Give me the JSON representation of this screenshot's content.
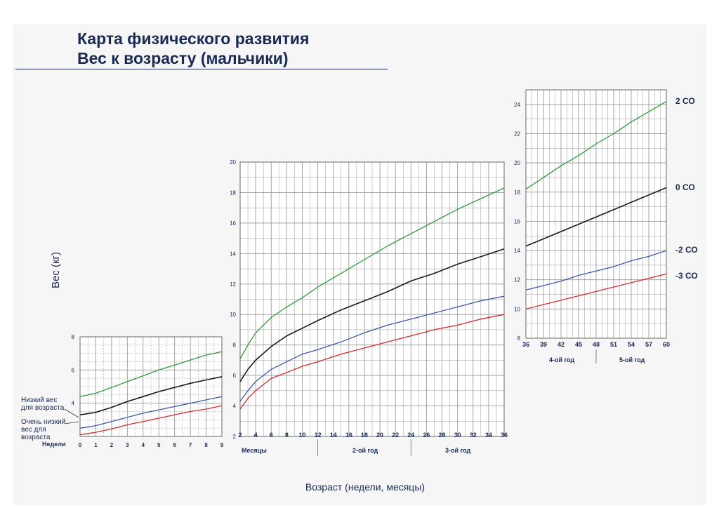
{
  "title_lines": [
    "Карта физического развития",
    "Вес к возрасту (мальчики)"
  ],
  "y_axis_label": "Вес (кг)",
  "x_axis_label": "Возраст (недели, месяцы)",
  "sd_labels": [
    "2 СО",
    "0 СО",
    "-2 СО",
    "-3 СО"
  ],
  "notes": {
    "low_weight": [
      "Низкий вес",
      "для возраста"
    ],
    "very_low_weight": [
      "Очень низкий",
      "вес для",
      "возраста"
    ]
  },
  "captions": {
    "weeks": "Недели",
    "months": "Месяцы",
    "year2": "2-ой год",
    "year3": "3-ой год",
    "year4": "4-ой год",
    "year5": "5-ой год"
  },
  "colors": {
    "sd2": "#2e9a3a",
    "sd0": "#1a1a1a",
    "sd_minus2": "#3d58a8",
    "sd_minus3": "#d42a2a",
    "text": "#1a2a55",
    "grid": "#9a9a9a"
  },
  "chart_data": [
    {
      "type": "line",
      "name": "weeks",
      "x_unit": "Недели",
      "xlim": [
        0,
        9
      ],
      "ylim": [
        2,
        8
      ],
      "x_ticks": [
        0,
        1,
        2,
        3,
        4,
        5,
        6,
        7,
        8,
        9
      ],
      "y_ticks": [
        4,
        6,
        8
      ],
      "series": [
        {
          "name": "2 СО",
          "x": [
            0,
            1,
            2,
            3,
            4,
            5,
            6,
            7,
            8,
            9
          ],
          "values": [
            4.4,
            4.6,
            4.95,
            5.3,
            5.65,
            6.0,
            6.3,
            6.6,
            6.9,
            7.1
          ]
        },
        {
          "name": "0 СО",
          "x": [
            0,
            1,
            2,
            3,
            4,
            5,
            6,
            7,
            8,
            9
          ],
          "values": [
            3.3,
            3.45,
            3.75,
            4.1,
            4.4,
            4.7,
            4.95,
            5.2,
            5.4,
            5.6
          ]
        },
        {
          "name": "-2 СО",
          "x": [
            0,
            1,
            2,
            3,
            4,
            5,
            6,
            7,
            8,
            9
          ],
          "values": [
            2.5,
            2.65,
            2.9,
            3.15,
            3.4,
            3.6,
            3.8,
            4.0,
            4.2,
            4.4
          ]
        },
        {
          "name": "-3 СО",
          "x": [
            0,
            1,
            2,
            3,
            4,
            5,
            6,
            7,
            8,
            9
          ],
          "values": [
            2.1,
            2.25,
            2.45,
            2.7,
            2.9,
            3.1,
            3.3,
            3.5,
            3.65,
            3.85
          ]
        }
      ]
    },
    {
      "type": "line",
      "name": "months",
      "x_unit": "Месяцы",
      "xlim": [
        2,
        36
      ],
      "ylim": [
        2,
        20
      ],
      "x_ticks": [
        2,
        4,
        6,
        8,
        10,
        12,
        14,
        16,
        18,
        20,
        22,
        24,
        26,
        28,
        30,
        32,
        34,
        36
      ],
      "y_ticks": [
        2,
        4,
        6,
        8,
        10,
        12,
        14,
        16,
        18,
        20
      ],
      "series": [
        {
          "name": "2 СО",
          "x": [
            2,
            3,
            4,
            6,
            8,
            10,
            12,
            15,
            18,
            21,
            24,
            27,
            30,
            33,
            36
          ],
          "values": [
            7.1,
            8.0,
            8.8,
            9.8,
            10.5,
            11.1,
            11.8,
            12.7,
            13.6,
            14.5,
            15.3,
            16.1,
            16.9,
            17.6,
            18.3
          ]
        },
        {
          "name": "0 СО",
          "x": [
            2,
            3,
            4,
            6,
            8,
            10,
            12,
            15,
            18,
            21,
            24,
            27,
            30,
            33,
            36
          ],
          "values": [
            5.6,
            6.4,
            7.0,
            7.9,
            8.6,
            9.1,
            9.6,
            10.3,
            10.9,
            11.5,
            12.2,
            12.7,
            13.3,
            13.8,
            14.3
          ]
        },
        {
          "name": "-2 СО",
          "x": [
            2,
            3,
            4,
            6,
            8,
            10,
            12,
            15,
            18,
            21,
            24,
            27,
            30,
            33,
            36
          ],
          "values": [
            4.3,
            5.0,
            5.6,
            6.4,
            6.9,
            7.4,
            7.7,
            8.2,
            8.8,
            9.3,
            9.7,
            10.1,
            10.5,
            10.9,
            11.2
          ]
        },
        {
          "name": "-3 СО",
          "x": [
            2,
            3,
            4,
            6,
            8,
            10,
            12,
            15,
            18,
            21,
            24,
            27,
            30,
            33,
            36
          ],
          "values": [
            3.8,
            4.5,
            5.0,
            5.8,
            6.2,
            6.6,
            6.9,
            7.4,
            7.8,
            8.2,
            8.6,
            9.0,
            9.3,
            9.7,
            10.0
          ]
        }
      ]
    },
    {
      "type": "line",
      "name": "years 4-5",
      "x_unit": "Месяцы",
      "xlim": [
        36,
        60
      ],
      "ylim": [
        8,
        25
      ],
      "x_ticks": [
        36,
        39,
        42,
        45,
        48,
        51,
        54,
        57,
        60
      ],
      "y_ticks": [
        8,
        10,
        12,
        14,
        16,
        18,
        20,
        22,
        24
      ],
      "series": [
        {
          "name": "2 СО",
          "x": [
            36,
            39,
            42,
            45,
            48,
            51,
            54,
            57,
            60
          ],
          "values": [
            18.2,
            19.0,
            19.8,
            20.5,
            21.3,
            22.0,
            22.8,
            23.5,
            24.2
          ]
        },
        {
          "name": "0 СО",
          "x": [
            36,
            39,
            42,
            45,
            48,
            51,
            54,
            57,
            60
          ],
          "values": [
            14.3,
            14.8,
            15.3,
            15.8,
            16.3,
            16.8,
            17.3,
            17.8,
            18.3
          ]
        },
        {
          "name": "-2 СО",
          "x": [
            36,
            39,
            42,
            45,
            48,
            51,
            54,
            57,
            60
          ],
          "values": [
            11.3,
            11.6,
            11.9,
            12.3,
            12.6,
            12.9,
            13.3,
            13.6,
            14.0
          ]
        },
        {
          "name": "-3 СО",
          "x": [
            36,
            39,
            42,
            45,
            48,
            51,
            54,
            57,
            60
          ],
          "values": [
            10.0,
            10.3,
            10.6,
            10.9,
            11.2,
            11.5,
            11.8,
            12.1,
            12.4
          ]
        }
      ]
    }
  ]
}
